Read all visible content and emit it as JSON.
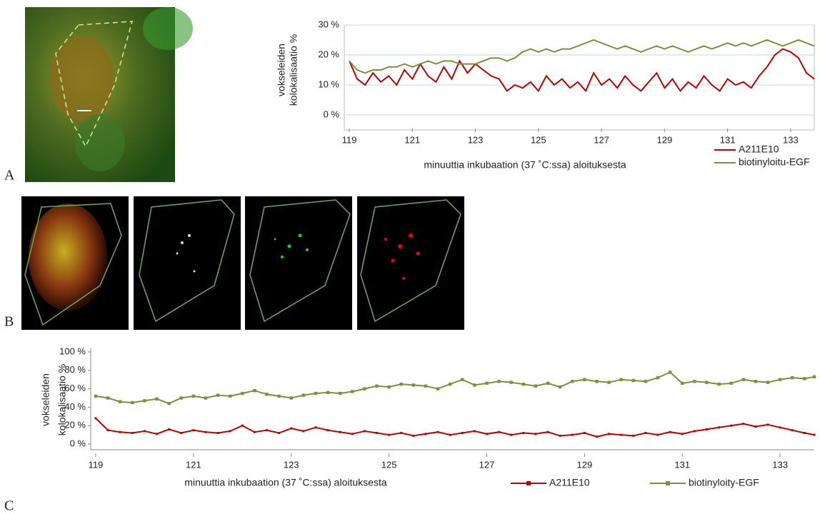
{
  "panel_labels": [
    "A",
    "B",
    "C"
  ],
  "chart_data": [
    {
      "type": "line",
      "grid": true,
      "markers": false,
      "ylabel": [
        "vokseleiden",
        "kolokalisaatio %"
      ],
      "xlabel": "minuuttia inkubaation (37 ˚C:ssa) aloituksesta",
      "xlim": [
        119,
        133.75
      ],
      "xticks": [
        119,
        121,
        123,
        125,
        127,
        129,
        131,
        133
      ],
      "ylim": [
        0,
        30
      ],
      "yticks": [
        {
          "value": 0,
          "label": "0 %"
        },
        {
          "value": 10,
          "label": "10 %"
        },
        {
          "value": 20,
          "label": "20 %"
        },
        {
          "value": 30,
          "label": "30 %"
        }
      ],
      "x": [
        119,
        119.25,
        119.5,
        119.75,
        120,
        120.25,
        120.5,
        120.75,
        121,
        121.25,
        121.5,
        121.75,
        122,
        122.25,
        122.5,
        122.75,
        123,
        123.25,
        123.5,
        123.75,
        124,
        124.25,
        124.5,
        124.75,
        125,
        125.25,
        125.5,
        125.75,
        126,
        126.25,
        126.5,
        126.75,
        127,
        127.25,
        127.5,
        127.75,
        128,
        128.25,
        128.5,
        128.75,
        129,
        129.25,
        129.5,
        129.75,
        130,
        130.25,
        130.5,
        130.75,
        131,
        131.25,
        131.5,
        131.75,
        132,
        132.25,
        132.5,
        132.75,
        133,
        133.25,
        133.5,
        133.75
      ],
      "series": [
        {
          "name": "A211E10",
          "color": "#c00000",
          "values": [
            18,
            12,
            10,
            14,
            11,
            13,
            10,
            15,
            12,
            17,
            13,
            11,
            16,
            12,
            18,
            14,
            17,
            15,
            13,
            12,
            8,
            10,
            9,
            11,
            8,
            13,
            10,
            12,
            9,
            11,
            8,
            14,
            10,
            12,
            9,
            13,
            10,
            8,
            11,
            14,
            9,
            12,
            8,
            11,
            9,
            13,
            10,
            8,
            12,
            10,
            11,
            9,
            13,
            16,
            20,
            22,
            21,
            19,
            14,
            12
          ]
        },
        {
          "name": "biotinyloitu-EGF",
          "color": "#77933c",
          "values": [
            18,
            15,
            14,
            15,
            15,
            16,
            16,
            17,
            16,
            17,
            18,
            17,
            18,
            18,
            17,
            17,
            17,
            18,
            19,
            19,
            18,
            19,
            21,
            22,
            21,
            22,
            21,
            22,
            22,
            23,
            24,
            25,
            24,
            23,
            22,
            23,
            22,
            21,
            22,
            23,
            22,
            23,
            22,
            21,
            22,
            23,
            22,
            23,
            24,
            23,
            24,
            23,
            24,
            25,
            24,
            23,
            24,
            25,
            24,
            23
          ]
        }
      ]
    },
    {
      "type": "line",
      "grid": false,
      "markers": true,
      "ylabel": [
        "vokseleiden",
        "kolokalisaatio %"
      ],
      "xlabel": "minuuttia inkubaation (37 ˚C:ssa) aloituksesta",
      "xlim": [
        119,
        133.7
      ],
      "xticks": [
        119,
        121,
        123,
        125,
        127,
        129,
        131,
        133
      ],
      "ylim": [
        0,
        100
      ],
      "yticks": [
        {
          "value": 0,
          "label": "0 %"
        },
        {
          "value": 20,
          "label": "20 %"
        },
        {
          "value": 40,
          "label": "40 %"
        },
        {
          "value": 60,
          "label": "60 %"
        },
        {
          "value": 80,
          "label": "80 %"
        },
        {
          "value": 100,
          "label": "100 %"
        }
      ],
      "x": [
        119,
        119.25,
        119.5,
        119.75,
        120,
        120.25,
        120.5,
        120.75,
        121,
        121.25,
        121.5,
        121.75,
        122,
        122.25,
        122.5,
        122.75,
        123,
        123.25,
        123.5,
        123.75,
        124,
        124.25,
        124.5,
        124.75,
        125,
        125.25,
        125.5,
        125.75,
        126,
        126.25,
        126.5,
        126.75,
        127,
        127.25,
        127.5,
        127.75,
        128,
        128.25,
        128.5,
        128.75,
        129,
        129.25,
        129.5,
        129.75,
        130,
        130.25,
        130.5,
        130.75,
        131,
        131.25,
        131.5,
        131.75,
        132,
        132.25,
        132.5,
        132.75,
        133,
        133.25,
        133.5,
        133.7
      ],
      "series": [
        {
          "name": "A211E10",
          "color": "#c00000",
          "values": [
            28,
            15,
            13,
            12,
            14,
            11,
            16,
            12,
            15,
            13,
            12,
            14,
            20,
            13,
            15,
            12,
            17,
            14,
            18,
            15,
            13,
            11,
            14,
            12,
            10,
            12,
            9,
            11,
            13,
            10,
            12,
            14,
            11,
            13,
            10,
            12,
            11,
            13,
            9,
            10,
            12,
            8,
            11,
            10,
            9,
            12,
            10,
            13,
            11,
            14,
            16,
            18,
            20,
            22,
            19,
            21,
            18,
            15,
            12,
            10
          ]
        },
        {
          "name": "biotinyloity-EGF",
          "color": "#77933c",
          "values": [
            52,
            50,
            46,
            45,
            47,
            49,
            44,
            50,
            52,
            50,
            53,
            52,
            55,
            58,
            54,
            52,
            50,
            53,
            55,
            56,
            55,
            57,
            60,
            63,
            62,
            65,
            64,
            63,
            60,
            65,
            70,
            64,
            66,
            68,
            67,
            65,
            63,
            66,
            62,
            68,
            70,
            68,
            67,
            70,
            69,
            68,
            72,
            78,
            66,
            68,
            67,
            65,
            66,
            70,
            68,
            67,
            70,
            72,
            71,
            73
          ]
        }
      ]
    }
  ]
}
